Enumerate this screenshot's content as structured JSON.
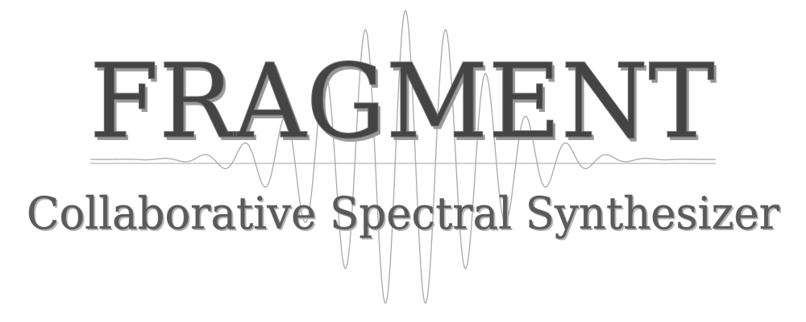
{
  "logo": {
    "title": "FRAGMENT",
    "subtitle": "Collaborative Spectral Synthesizer"
  },
  "colors": {
    "title": "#444444",
    "subtitle": "#5a5a5a",
    "waveform": "#a9a9a9",
    "background": "#ffffff"
  }
}
